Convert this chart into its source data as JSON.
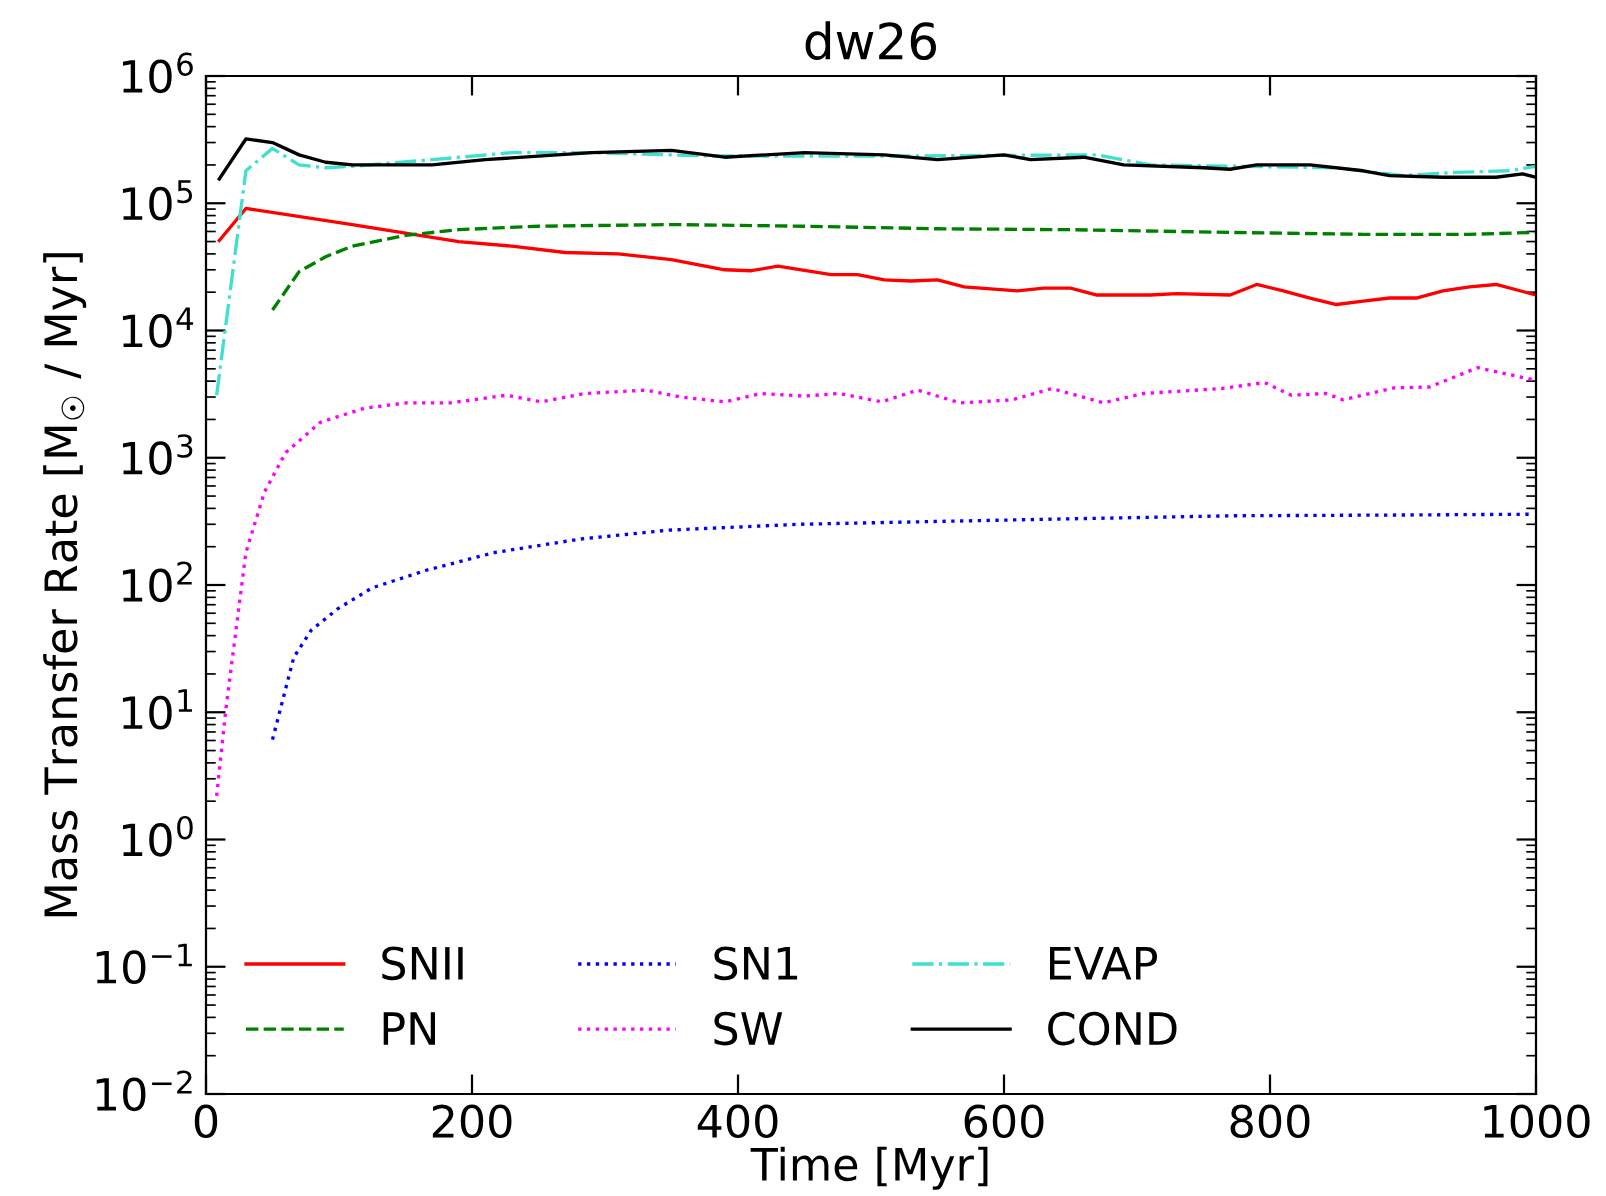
{
  "chart_data": {
    "type": "line",
    "title": "dw26",
    "xlabel": "Time [Myr]",
    "ylabel": "Mass Transfer Rate [M$_{☉}$ / Myr]",
    "log": "y",
    "grid": false,
    "legend": "bottom left",
    "xlim": [
      0,
      1000
    ],
    "xticks": [
      0,
      200,
      400,
      600,
      800,
      1000
    ],
    "ylim": [
      0.01,
      1000000
    ],
    "yticks": [
      {
        "value": 0.01,
        "label": "10$^{−2}$"
      },
      {
        "value": 0.1,
        "label": "10$^{−1}$"
      },
      {
        "value": 1,
        "label": "10$^{0}$"
      },
      {
        "value": 10,
        "label": "10$^{1}$"
      },
      {
        "value": 100,
        "label": "10$^{2}$"
      },
      {
        "value": 1000,
        "label": "10$^{3}$"
      },
      {
        "value": 10000,
        "label": "10$^{4}$"
      },
      {
        "value": 100000,
        "label": "10$^{5}$"
      },
      {
        "value": 1000000,
        "label": "10$^{6}$"
      }
    ],
    "series": [
      {
        "name": "SNII",
        "color": "#ff0000",
        "line_style": "solid",
        "x": [
          10,
          30,
          110,
          190,
          230,
          270,
          310,
          350,
          390,
          410,
          430,
          470,
          490,
          510,
          530,
          550,
          570,
          610,
          630,
          650,
          670,
          710,
          730,
          770,
          790,
          810,
          830,
          850,
          870,
          890,
          910,
          930,
          950,
          970,
          1000
        ],
        "values": [
          51000,
          91000,
          68000,
          50000,
          46000,
          41000,
          40000,
          36000,
          30000,
          29500,
          32000,
          27500,
          27500,
          25000,
          24500,
          25000,
          22000,
          20500,
          21500,
          21500,
          19000,
          19000,
          19500,
          19000,
          23000,
          20500,
          18000,
          16000,
          17000,
          18000,
          18000,
          20500,
          22000,
          23000,
          19000
        ]
      },
      {
        "name": "PN",
        "color": "#008000",
        "line_style": "dashed",
        "x": [
          50,
          70,
          90,
          110,
          150,
          190,
          250,
          350,
          450,
          550,
          650,
          770,
          870,
          950,
          1000
        ],
        "values": [
          14500,
          29000,
          38000,
          46000,
          56000,
          62000,
          66000,
          68000,
          66000,
          63000,
          62000,
          59000,
          57000,
          57000,
          59000
        ]
      },
      {
        "name": "SN1",
        "color": "#0000ff",
        "line_style": "dotted",
        "x": [
          50,
          66,
          79,
          99,
          125,
          165,
          217,
          282,
          348,
          446,
          544,
          642,
          772,
          903,
          998
        ],
        "values": [
          6.1,
          27,
          44,
          65,
          95,
          130,
          180,
          230,
          270,
          300,
          315,
          330,
          350,
          355,
          360
        ]
      },
      {
        "name": "SW",
        "color": "#ff00ff",
        "line_style": "dotted",
        "x": [
          8,
          15,
          30,
          44,
          60,
          86,
          119,
          151,
          184,
          226,
          252,
          285,
          331,
          357,
          390,
          417,
          450,
          476,
          508,
          535,
          567,
          606,
          636,
          675,
          705,
          764,
          796,
          816,
          842,
          855,
          894,
          920,
          956,
          998
        ],
        "values": [
          2.2,
          10.7,
          180,
          540,
          1100,
          1900,
          2450,
          2700,
          2700,
          3100,
          2750,
          3200,
          3400,
          3000,
          2750,
          3200,
          3050,
          3200,
          2750,
          3400,
          2700,
          2850,
          3500,
          2700,
          3200,
          3500,
          3900,
          3100,
          3200,
          2850,
          3550,
          3600,
          5100,
          4100
        ]
      },
      {
        "name": "EVAP",
        "color": "#40e0d0",
        "line_style": "dashdot",
        "x": [
          8,
          30,
          50,
          70,
          90,
          110,
          170,
          230,
          290,
          380,
          510,
          670,
          710,
          850,
          900,
          940,
          980,
          1000
        ],
        "values": [
          3100,
          180000,
          270000,
          200000,
          190000,
          195000,
          220000,
          250000,
          250000,
          235000,
          235000,
          240000,
          200000,
          190000,
          165000,
          175000,
          180000,
          195000
        ]
      },
      {
        "name": "COND",
        "color": "#000000",
        "line_style": "solid",
        "x": [
          10,
          30,
          50,
          70,
          90,
          110,
          170,
          210,
          290,
          350,
          390,
          450,
          510,
          550,
          600,
          620,
          660,
          690,
          750,
          770,
          790,
          830,
          870,
          890,
          930,
          970,
          990,
          1000
        ],
        "values": [
          155000,
          320000,
          300000,
          240000,
          210000,
          200000,
          200000,
          220000,
          250000,
          260000,
          230000,
          250000,
          240000,
          220000,
          240000,
          220000,
          230000,
          200000,
          190000,
          185000,
          200000,
          200000,
          180000,
          165000,
          160000,
          160000,
          170000,
          160000
        ]
      }
    ]
  }
}
